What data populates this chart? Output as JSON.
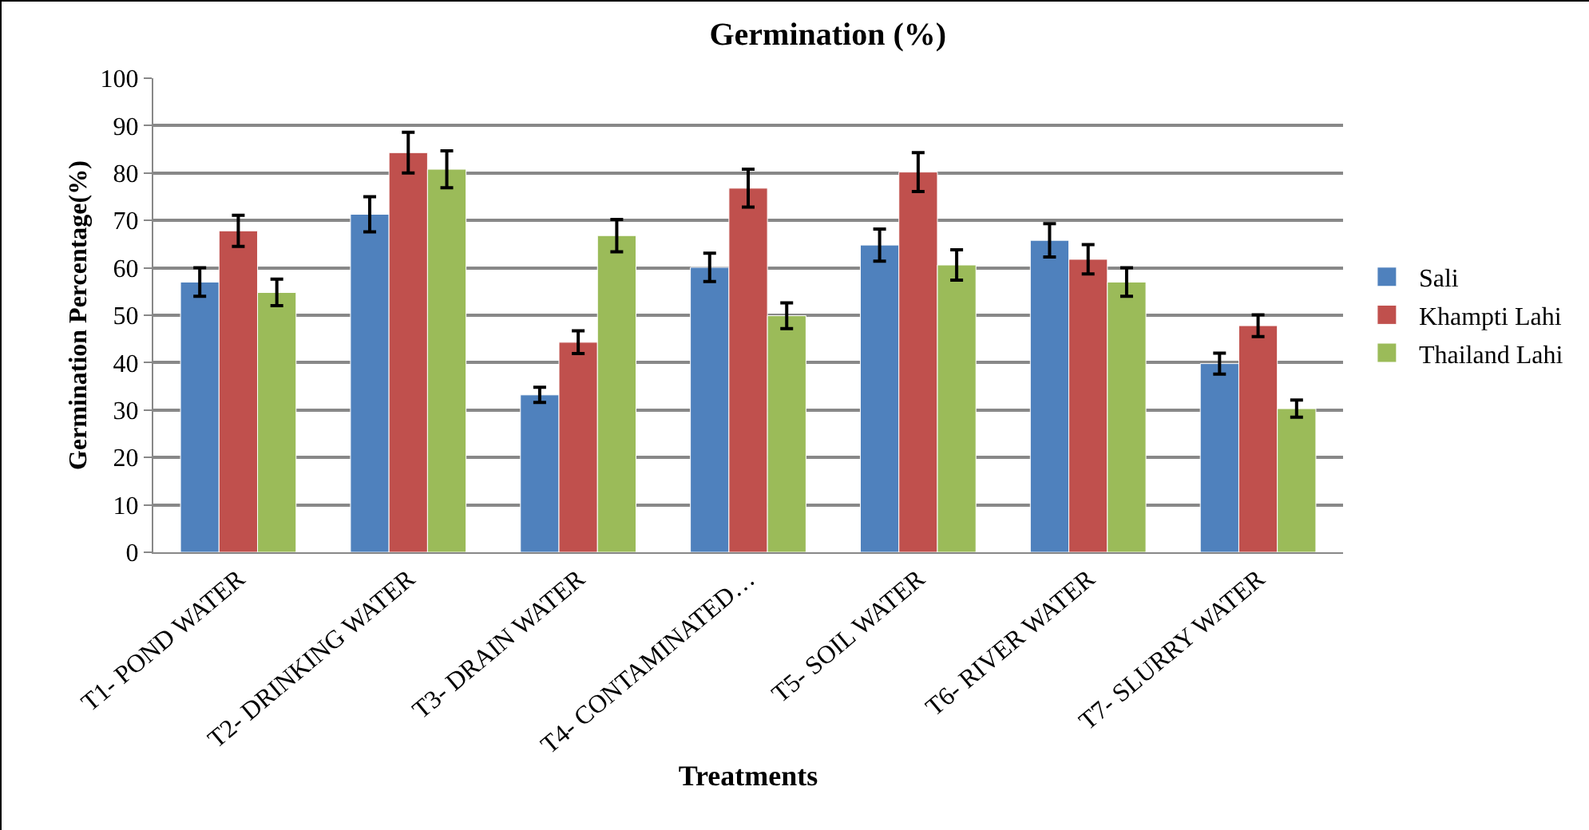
{
  "chart_data": {
    "type": "bar",
    "title": "Germination (%)",
    "xlabel": "Treatments",
    "ylabel": "Germination Percentage(%)",
    "categories": [
      "T1- POND WATER",
      "T2- DRINKING WATER",
      "T3- DRAIN WATER",
      "T4- CONTAMINATED…",
      "T5- SOIL WATER",
      "T6- RIVER WATER",
      "T7- SLURRY WATER"
    ],
    "series": [
      {
        "name": "Sali",
        "color": "#4f81bd",
        "values": [
          57,
          71.3,
          33.2,
          60.1,
          64.8,
          65.8,
          39.8
        ],
        "errors": [
          3,
          3.7,
          1.6,
          3,
          3.4,
          3.5,
          2.2
        ]
      },
      {
        "name": "Khampti Lahi",
        "color": "#c0504d",
        "values": [
          67.8,
          84.3,
          44.3,
          76.8,
          80.2,
          61.8,
          47.8
        ],
        "errors": [
          3.3,
          4.3,
          2.4,
          4,
          4.1,
          3.1,
          2.3
        ]
      },
      {
        "name": "Thailand Lahi",
        "color": "#9bbb59",
        "values": [
          54.8,
          80.8,
          66.8,
          49.9,
          60.6,
          57,
          30.3
        ],
        "errors": [
          2.8,
          3.9,
          3.4,
          2.7,
          3.2,
          3,
          1.8
        ]
      }
    ],
    "ylim": [
      0,
      100
    ],
    "yticks": [
      0,
      10,
      20,
      30,
      40,
      50,
      60,
      70,
      80,
      90,
      100
    ],
    "grid": "y",
    "legend": "right"
  }
}
